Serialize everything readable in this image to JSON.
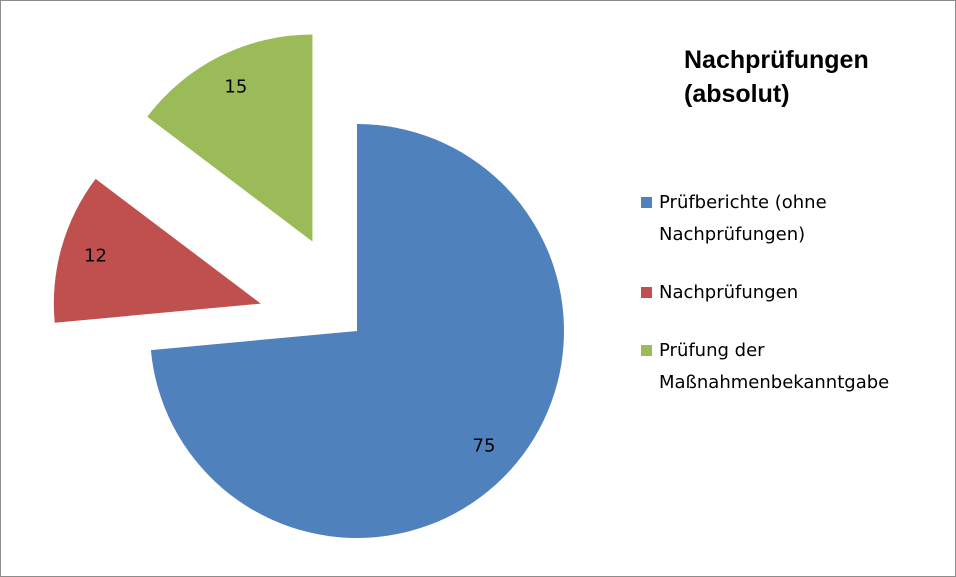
{
  "chart_data": {
    "type": "pie",
    "title": "Nachprüfungen (absolut)",
    "categories": [
      "Prüfberichte (ohne Nachprüfungen)",
      "Nachprüfungen",
      "Prüfung der Maßnahmenbekanntgabe"
    ],
    "values": [
      75,
      12,
      15
    ],
    "colors": [
      "#4f81bd",
      "#c0504d",
      "#9bbb59"
    ],
    "exploded": [
      false,
      true,
      true
    ]
  }
}
